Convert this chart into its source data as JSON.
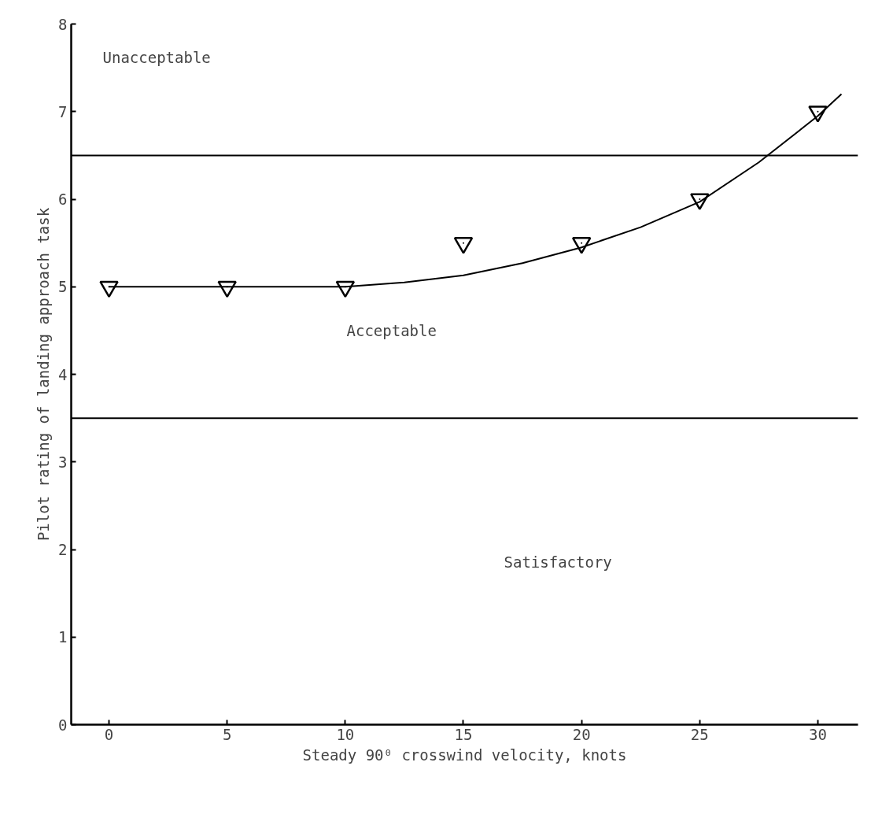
{
  "chart_data": {
    "type": "scatter",
    "xlabel": "Steady 90⁰ crosswind velocity, knots",
    "ylabel": "Pilot rating of landing approach task",
    "xlim": [
      -1.6,
      31.7
    ],
    "ylim": [
      0,
      8
    ],
    "xticks": [
      0,
      5,
      10,
      15,
      20,
      25,
      30
    ],
    "yticks": [
      0,
      1,
      2,
      3,
      4,
      5,
      6,
      7,
      8
    ],
    "grid": false,
    "marker": "triangle",
    "series": [
      {
        "color": "#000000",
        "x": [
          0,
          5,
          10,
          15,
          20,
          25,
          30
        ],
        "values": [
          5,
          5,
          5,
          5.5,
          5.5,
          6,
          7
        ]
      },
      {
        "type": "line",
        "color": "#000000",
        "marker": "none",
        "x": [
          0,
          5,
          10,
          12.5,
          15,
          17.5,
          20,
          22.5,
          25,
          27.5,
          30,
          31
        ],
        "values": [
          5,
          5,
          5,
          5.05,
          5.13,
          5.27,
          5.45,
          5.68,
          5.97,
          6.42,
          6.95,
          7.2
        ]
      }
    ],
    "ref_lines": [
      {
        "axis": "y",
        "value": 6.5,
        "color": "#000000"
      },
      {
        "axis": "y",
        "value": 3.5,
        "color": "#000000"
      }
    ],
    "annotations": [
      "Unacceptable",
      "Acceptable",
      "Satisfactory"
    ]
  }
}
